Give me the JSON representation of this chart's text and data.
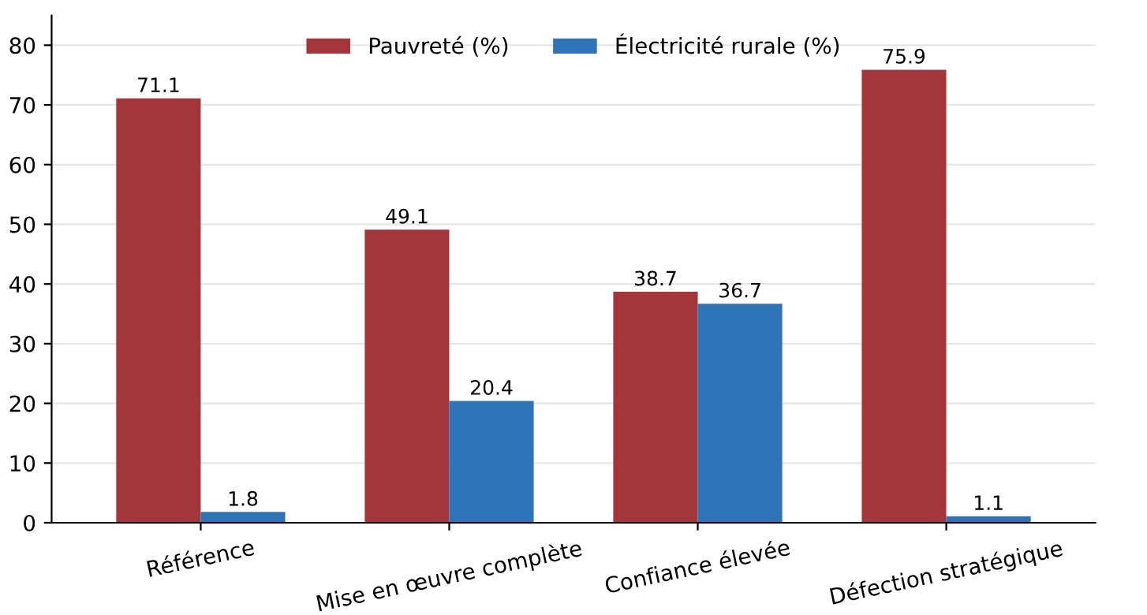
{
  "chart_data": {
    "type": "bar",
    "categories": [
      "Référence",
      "Mise en œuvre complète",
      "Confiance élevée",
      "Défection stratégique"
    ],
    "series": [
      {
        "name": "Pauvreté (%)",
        "color": "#a3363a",
        "values": [
          71.1,
          49.1,
          38.7,
          75.9
        ]
      },
      {
        "name": "Électricité rurale (%)",
        "color": "#2e74b6",
        "values": [
          1.8,
          20.4,
          36.7,
          1.1
        ]
      }
    ],
    "ylim": [
      0,
      85
    ],
    "yticks": [
      0,
      10,
      20,
      30,
      40,
      50,
      60,
      70,
      80
    ],
    "grid": "y",
    "legend": "top",
    "data_labels": true
  }
}
